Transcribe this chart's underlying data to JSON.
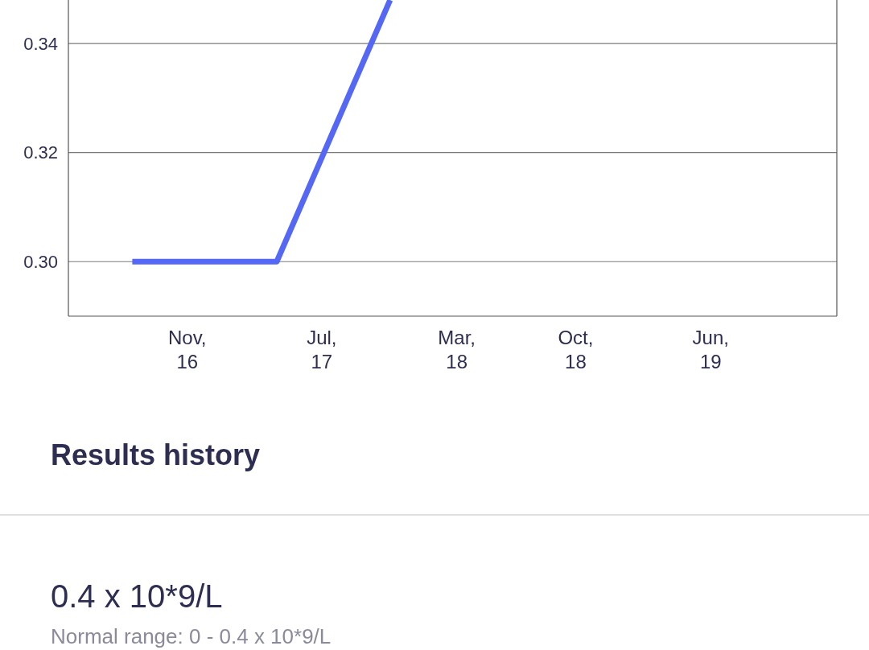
{
  "chart_data": {
    "type": "line",
    "x": [
      "2016-07-25",
      "2017-04-11",
      "2017-11-01"
    ],
    "series": [
      {
        "color": "#5468f5",
        "values": [
          0.3,
          0.3,
          0.348
        ]
      }
    ],
    "xlim": [
      "2016-04-01",
      "2020-01-14"
    ],
    "xticks": [
      {
        "value": "2016-11-01",
        "label": "Nov,\n16"
      },
      {
        "value": "2017-07-01",
        "label": "Jul,\n17"
      },
      {
        "value": "2018-03-01",
        "label": "Mar,\n18"
      },
      {
        "value": "2018-10-01",
        "label": "Oct,\n18"
      },
      {
        "value": "2019-06-01",
        "label": "Jun,\n19"
      }
    ],
    "ylim": [
      0.29,
      0.348
    ],
    "yticks": [
      {
        "value": 0.3,
        "label": "0.30"
      },
      0.32,
      0.34
    ],
    "grid": "y",
    "marker": "none",
    "line_style": "solid",
    "annotations": [
      "Results history",
      "0.4 x 10*9/L",
      "Normal range: 0 - 0.4 x 10*9/L"
    ]
  }
}
